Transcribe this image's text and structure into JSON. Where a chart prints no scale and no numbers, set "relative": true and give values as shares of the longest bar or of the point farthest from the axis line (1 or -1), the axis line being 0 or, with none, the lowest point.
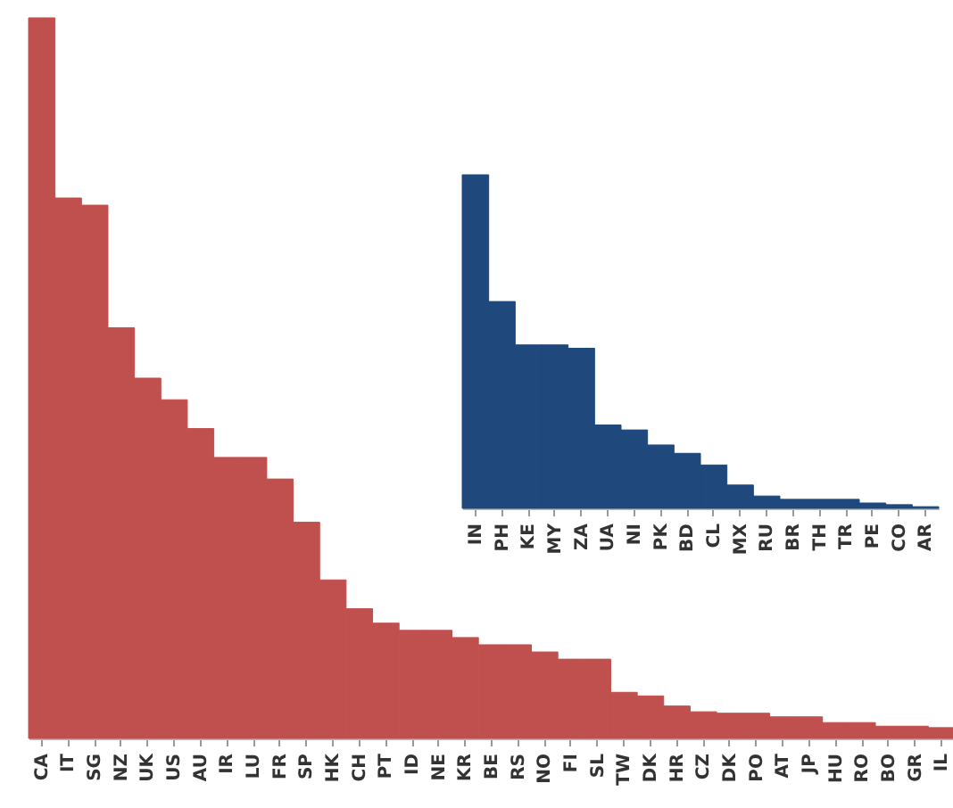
{
  "chart_data": [
    {
      "type": "bar",
      "relative": true,
      "color": "#c0504d",
      "categories": [
        "CA",
        "IT",
        "SG",
        "NZ",
        "UK",
        "US",
        "AU",
        "IR",
        "LU",
        "FR",
        "SP",
        "HK",
        "CH",
        "PT",
        "ID",
        "NE",
        "KR",
        "BE",
        "RS",
        "NO",
        "FI",
        "SL",
        "TW",
        "DK",
        "HR",
        "CZ",
        "DK",
        "PO",
        "AT",
        "JP",
        "HU",
        "RO",
        "BO",
        "GR",
        "IL"
      ],
      "values": [
        1.0,
        0.75,
        0.74,
        0.57,
        0.5,
        0.47,
        0.43,
        0.39,
        0.39,
        0.36,
        0.3,
        0.22,
        0.18,
        0.16,
        0.15,
        0.15,
        0.14,
        0.13,
        0.13,
        0.12,
        0.11,
        0.11,
        0.064,
        0.059,
        0.045,
        0.037,
        0.035,
        0.035,
        0.03,
        0.03,
        0.022,
        0.022,
        0.017,
        0.017,
        0.015
      ]
    },
    {
      "type": "bar",
      "relative": true,
      "color": "#1f497d",
      "categories": [
        "IN",
        "PH",
        "KE",
        "MY",
        "ZA",
        "UA",
        "NI",
        "PK",
        "BD",
        "CL",
        "MX",
        "RU",
        "BR",
        "TH",
        "TR",
        "PE",
        "CO",
        "AR"
      ],
      "values": [
        1.0,
        0.62,
        0.49,
        0.49,
        0.48,
        0.25,
        0.235,
        0.19,
        0.165,
        0.13,
        0.07,
        0.037,
        0.027,
        0.027,
        0.027,
        0.016,
        0.011,
        0.005
      ]
    }
  ]
}
